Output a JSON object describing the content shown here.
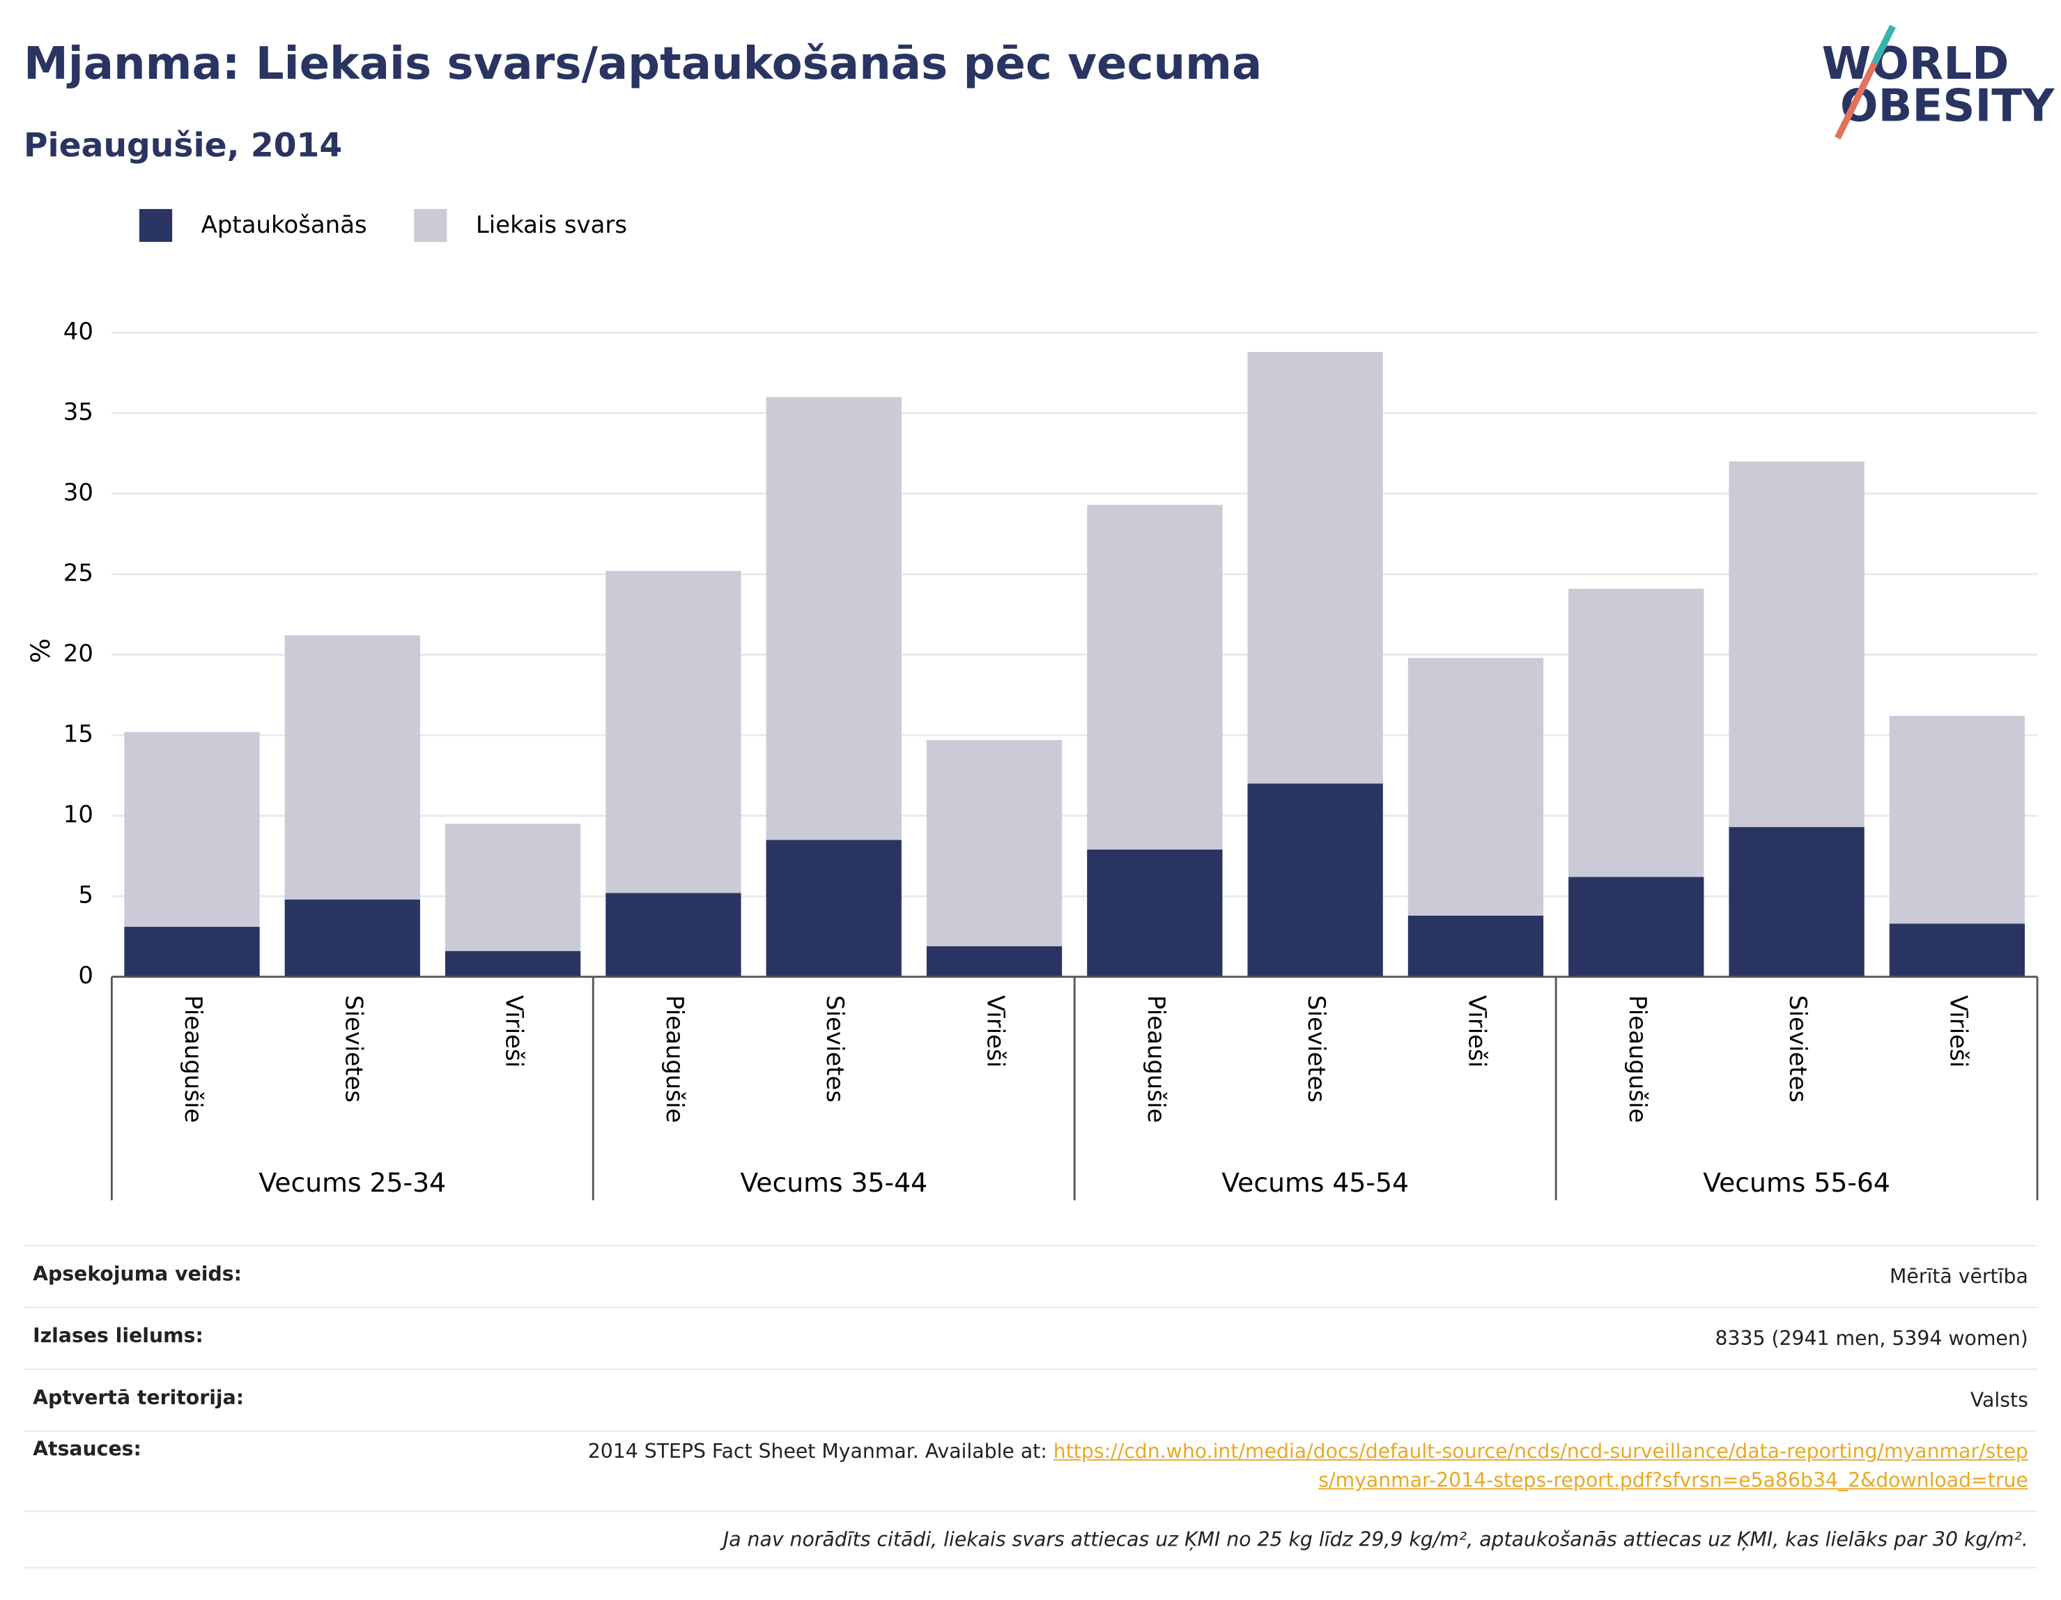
{
  "chart_data": {
    "type": "stacked_bar",
    "title": "Mjanma: Liekais svars/aptaukošanās pēc vecuma",
    "subtitle": "Pieaugušie, 2014",
    "y_label": "%",
    "categories": [
      "Pieaugušie",
      "Sievietes",
      "Vīrieši",
      "Pieaugušie",
      "Sievietes",
      "Vīrieši",
      "Pieaugušie",
      "Sievietes",
      "Vīrieši",
      "Pieaugušie",
      "Sievietes",
      "Vīrieši"
    ],
    "groups": [
      "Vecums 25-34",
      "Vecums 35-44",
      "Vecums 45-54",
      "Vecums 55-64"
    ],
    "series": [
      {
        "name": "Aptaukošanās",
        "color": "#293462",
        "values": [
          3.1,
          4.8,
          1.6,
          5.2,
          8.5,
          1.9,
          7.9,
          12.0,
          3.8,
          6.2,
          9.3,
          3.3
        ]
      },
      {
        "name": "Liekais svars",
        "color": "#cacbd7",
        "values": [
          12.1,
          16.4,
          7.9,
          20.0,
          27.5,
          12.8,
          21.4,
          26.8,
          16.0,
          17.9,
          22.7,
          12.9
        ]
      }
    ],
    "ylim": [
      0,
      40
    ],
    "yticks": [
      0,
      5,
      10,
      15,
      20,
      25,
      30,
      35,
      40
    ],
    "grid": true,
    "legend": "top-left"
  },
  "logo": {
    "line1": "WORLD",
    "line2": "OBESITY"
  },
  "info": {
    "rows": [
      {
        "label": "Apsekojuma veids:",
        "value": "Mērītā vērtība"
      },
      {
        "label": "Izlases lielums:",
        "value": "8335 (2941 men, 5394 women)"
      },
      {
        "label": "Aptvertā teritorija:",
        "value": "Valsts"
      }
    ],
    "source": {
      "label": "Atsauces:",
      "text": "2014 STEPS Fact Sheet Myanmar. Available at: ",
      "link": "https://cdn.who.int/media/docs/default-source/ncds/ncd-surveillance/data-reporting/myanmar/steps/myanmar-2014-steps-report.pdf?sfvrsn=e5a86b34_2&download=true"
    },
    "note": "Ja nav norādīts citādi, liekais svars attiecas uz ĶMI no 25 kg līdz 29,9 kg/m², aptaukošanās attiecas uz ĶMI, kas lielāks par 30 kg/m²."
  }
}
